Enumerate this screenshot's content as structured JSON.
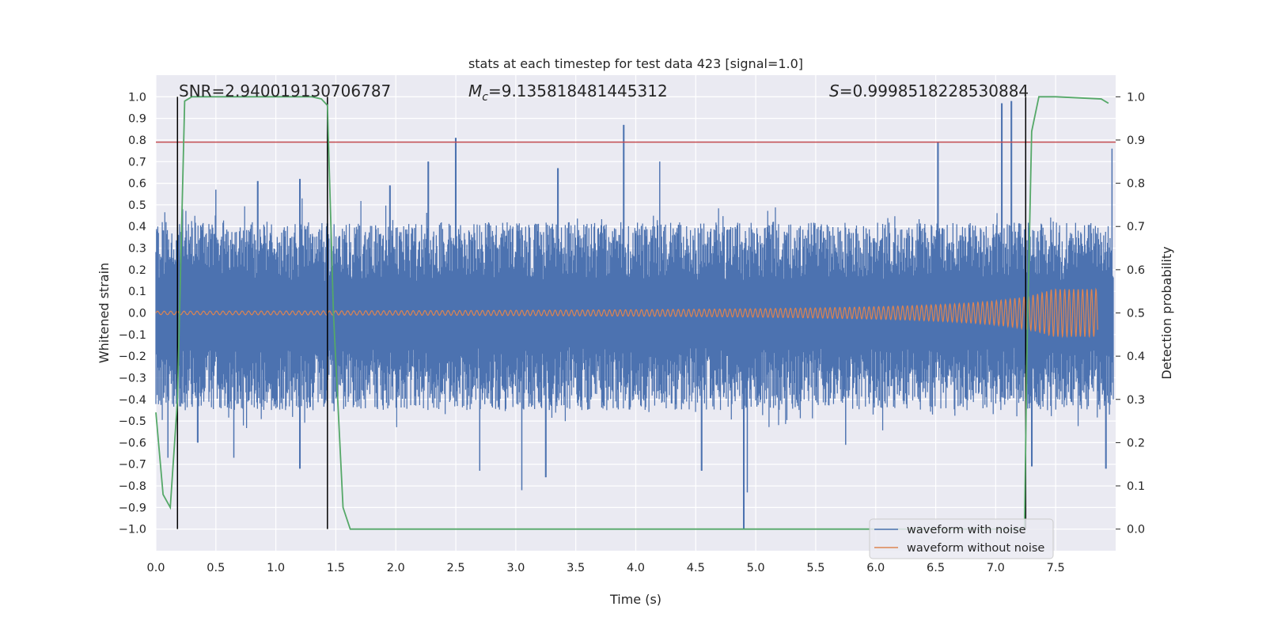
{
  "chart_data": {
    "type": "line",
    "title": "stats at each timestep for test data 423 [signal=1.0]",
    "xlabel": "Time (s)",
    "ylabel": "Whitened strain",
    "y2label": "Detection probability",
    "xlim": [
      0.0,
      8.0
    ],
    "ylim": [
      -1.1,
      1.1
    ],
    "y2lim": [
      -0.05,
      1.05
    ],
    "x_ticks": [
      0.0,
      0.5,
      1.0,
      1.5,
      2.0,
      2.5,
      3.0,
      3.5,
      4.0,
      4.5,
      5.0,
      5.5,
      6.0,
      6.5,
      7.0,
      7.5
    ],
    "x_tick_labels": [
      "0.0",
      "0.5",
      "1.0",
      "1.5",
      "2.0",
      "2.5",
      "3.0",
      "3.5",
      "4.0",
      "4.5",
      "5.0",
      "5.5",
      "6.0",
      "6.5",
      "7.0",
      "7.5"
    ],
    "y_ticks": [
      1.0,
      0.9,
      0.8,
      0.7,
      0.6,
      0.5,
      0.4,
      0.3,
      0.2,
      0.1,
      0.0,
      -0.1,
      -0.2,
      -0.3,
      -0.4,
      -0.5,
      -0.6,
      -0.7,
      -0.8,
      -0.9,
      -1.0
    ],
    "y_tick_labels": [
      "1.0",
      "0.9",
      "0.8",
      "0.7",
      "0.6",
      "0.5",
      "0.4",
      "0.3",
      "0.2",
      "0.1",
      "0.0",
      "−0.1",
      "−0.2",
      "−0.3",
      "−0.4",
      "−0.5",
      "−0.6",
      "−0.7",
      "−0.8",
      "−0.9",
      "−1.0"
    ],
    "y2_ticks": [
      1.0,
      0.9,
      0.8,
      0.7,
      0.6,
      0.5,
      0.4,
      0.3,
      0.2,
      0.1,
      0.0
    ],
    "y2_tick_labels": [
      "1.0",
      "0.9",
      "0.8",
      "0.7",
      "0.6",
      "0.5",
      "0.4",
      "0.3",
      "0.2",
      "0.1",
      "0.0"
    ],
    "annotations": {
      "snr": "SNR=2.940019130706787",
      "mc_symbol": "M",
      "mc_sub": "c",
      "mc_value": "=9.135818481445312",
      "s_symbol": "S",
      "s_value": "=0.9998518228530884"
    },
    "threshold": 0.79,
    "vertical_lines": [
      0.18,
      1.43,
      7.25
    ],
    "noise": {
      "name": "waveform with noise",
      "duration": 7.98,
      "typical_upper_envelope": 0.42,
      "typical_lower_envelope": -0.45,
      "peaks": [
        [
          0.22,
          0.48
        ],
        [
          0.5,
          0.57
        ],
        [
          0.85,
          0.61
        ],
        [
          1.2,
          0.62
        ],
        [
          1.95,
          0.59
        ],
        [
          2.27,
          0.7
        ],
        [
          2.5,
          0.81
        ],
        [
          3.35,
          0.67
        ],
        [
          3.9,
          0.87
        ],
        [
          4.2,
          0.7
        ],
        [
          6.52,
          0.79
        ],
        [
          7.05,
          0.97
        ],
        [
          7.13,
          0.98
        ],
        [
          7.97,
          0.76
        ]
      ],
      "troughs": [
        [
          0.1,
          -0.67
        ],
        [
          0.35,
          -0.6
        ],
        [
          0.65,
          -0.67
        ],
        [
          1.2,
          -0.72
        ],
        [
          2.7,
          -0.73
        ],
        [
          3.05,
          -0.82
        ],
        [
          3.25,
          -0.76
        ],
        [
          4.55,
          -0.73
        ],
        [
          4.9,
          -1.0
        ],
        [
          4.93,
          -0.83
        ],
        [
          5.75,
          -0.61
        ],
        [
          7.3,
          -0.71
        ],
        [
          7.92,
          -0.72
        ]
      ]
    },
    "clean": {
      "name": "waveform without noise",
      "start_amplitude": 0.008,
      "peak_time": 7.84,
      "peak_amplitude": 0.11,
      "end_time": 7.85
    },
    "probability": {
      "name": "Detection probability",
      "t": [
        0.0,
        0.06,
        0.12,
        0.18,
        0.24,
        0.3,
        1.3,
        1.38,
        1.43,
        1.48,
        1.56,
        1.62,
        7.24,
        7.26,
        7.3,
        7.36,
        7.5,
        7.88,
        7.94
      ],
      "p": [
        0.27,
        0.08,
        0.05,
        0.3,
        0.99,
        1.0,
        1.0,
        0.995,
        0.98,
        0.5,
        0.05,
        0.0,
        0.0,
        0.4,
        0.92,
        1.0,
        1.0,
        0.995,
        0.985
      ]
    },
    "legend": {
      "placement": "bottom-right",
      "entries": [
        "waveform with noise",
        "waveform without noise"
      ]
    },
    "colors": {
      "background": "#eaeaf2",
      "grid": "#ffffff",
      "noise": "#4c72b0",
      "clean": "#dd8452",
      "probability": "#55a868",
      "threshold": "#c44e52",
      "vline": "#000000",
      "text": "#262626"
    }
  }
}
